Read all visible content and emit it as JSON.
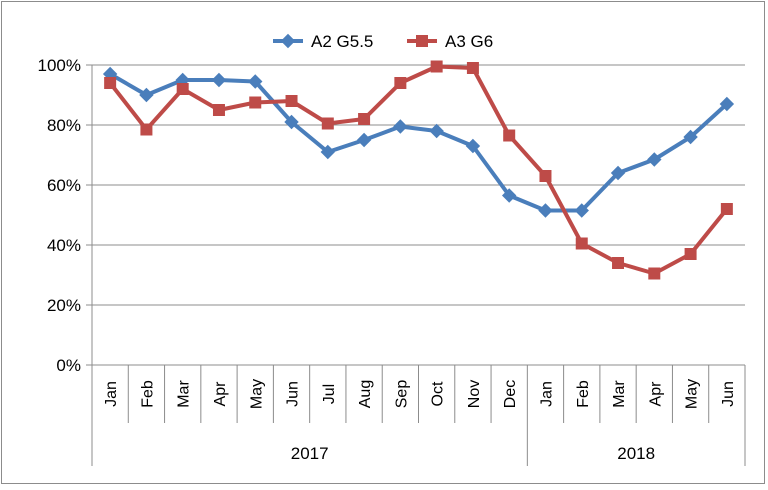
{
  "chart_data": {
    "type": "line",
    "title": "",
    "xlabel": "",
    "ylabel": "",
    "ylim": [
      0,
      100
    ],
    "y_ticks": [
      "0%",
      "20%",
      "40%",
      "60%",
      "80%",
      "100%"
    ],
    "categories": [
      "Jan",
      "Feb",
      "Mar",
      "Apr",
      "May",
      "Jun",
      "Jul",
      "Aug",
      "Sep",
      "Oct",
      "Nov",
      "Dec",
      "Jan",
      "Feb",
      "Mar",
      "Apr",
      "May",
      "Jun"
    ],
    "groups": [
      {
        "label": "2017",
        "count": 12
      },
      {
        "label": "2018",
        "count": 6
      }
    ],
    "grid": true,
    "legend_position": "top",
    "series": [
      {
        "name": "A2 G5.5",
        "color": "#4a7ebb",
        "marker": "diamond",
        "values": [
          97,
          90,
          95,
          95,
          94.5,
          81,
          71,
          75,
          79.5,
          78,
          73,
          56.5,
          51.5,
          51.5,
          64,
          68.5,
          76,
          87
        ]
      },
      {
        "name": "A3 G6",
        "color": "#be4b48",
        "marker": "square",
        "values": [
          94,
          78.5,
          92,
          85,
          87.5,
          88,
          80.5,
          82,
          94,
          99.5,
          99,
          76.5,
          63,
          40.5,
          34,
          30.5,
          37,
          52
        ]
      }
    ]
  }
}
